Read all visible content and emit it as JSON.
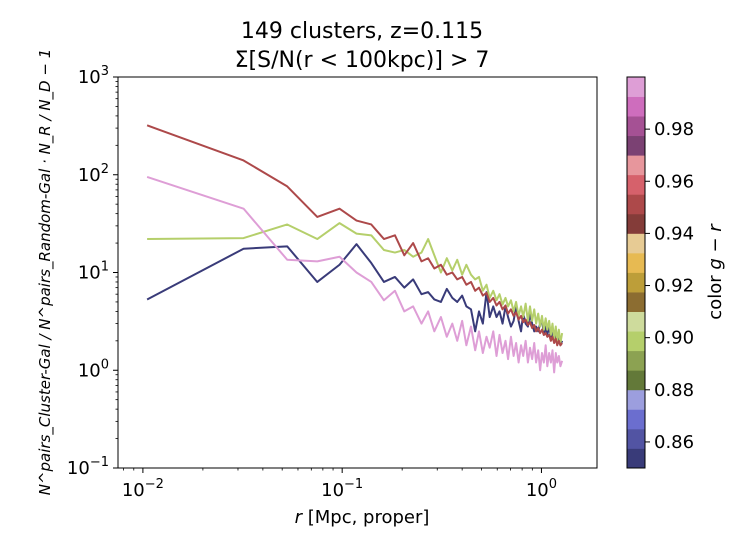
{
  "chart_data": {
    "type": "line",
    "title_line1": "149 clusters, z=0.115",
    "title_line2": "Σ[S/N(r < 100kpc)] > 7",
    "xlabel_var": "r",
    "xlabel_rest": " [Mpc, proper]",
    "ylabel": "N^pairs_Cluster-Gal / N^pairs_Random-Gal · N_R / N_D − 1",
    "xscale": "log",
    "yscale": "log",
    "xlim": [
      0.0075,
      1.9
    ],
    "ylim": [
      0.1,
      1000
    ],
    "xticks": [
      {
        "value": 0.01,
        "base": "10",
        "exp": "−2"
      },
      {
        "value": 0.1,
        "base": "10",
        "exp": "−1"
      },
      {
        "value": 1,
        "base": "10",
        "exp": "0"
      }
    ],
    "yticks": [
      {
        "value": 0.1,
        "base": "10",
        "exp": "−1"
      },
      {
        "value": 1,
        "base": "10",
        "exp": "0"
      },
      {
        "value": 10,
        "base": "10",
        "exp": "1"
      },
      {
        "value": 100,
        "base": "10",
        "exp": "2"
      },
      {
        "value": 1000,
        "base": "10",
        "exp": "3"
      }
    ],
    "series": [
      {
        "color": "#393b79",
        "x": [
          0.0105,
          0.032,
          0.053,
          0.075,
          0.097,
          0.118,
          0.14,
          0.162,
          0.184,
          0.205,
          0.227,
          0.25,
          0.27,
          0.29,
          0.313,
          0.335,
          0.357,
          0.378,
          0.4,
          0.42,
          0.443,
          0.465,
          0.486,
          0.508,
          0.53,
          0.55,
          0.573,
          0.595,
          0.616,
          0.638,
          0.66,
          0.68,
          0.703,
          0.725,
          0.746,
          0.768,
          0.79,
          0.81,
          0.833,
          0.855,
          0.876,
          0.898,
          0.92,
          0.94,
          0.963,
          0.985,
          1.006,
          1.028,
          1.05,
          1.07,
          1.093,
          1.115,
          1.136,
          1.158,
          1.18,
          1.2,
          1.223,
          1.245,
          1.27
        ],
        "y": [
          5.3,
          17.5,
          18.5,
          8.0,
          12.0,
          19.5,
          12.5,
          8.0,
          9.0,
          7.0,
          8.5,
          6.0,
          6.3,
          5.3,
          5.0,
          6.8,
          5.5,
          5.0,
          5.8,
          4.5,
          4.2,
          2.5,
          4.0,
          3.0,
          6.3,
          3.5,
          4.5,
          3.5,
          4.0,
          3.0,
          4.5,
          3.5,
          2.8,
          3.2,
          4.5,
          3.2,
          2.5,
          3.8,
          3.0,
          2.8,
          3.8,
          3.0,
          2.5,
          2.8,
          2.5,
          3.0,
          3.4,
          2.3,
          2.8,
          2.3,
          2.8,
          2.2,
          2.5,
          2.0,
          2.3,
          1.9,
          2.2,
          1.8,
          2.0
        ]
      },
      {
        "color": "#b5cf6b",
        "x": [
          0.0105,
          0.032,
          0.053,
          0.075,
          0.097,
          0.118,
          0.14,
          0.162,
          0.184,
          0.205,
          0.227,
          0.25,
          0.27,
          0.29,
          0.313,
          0.335,
          0.357,
          0.378,
          0.4,
          0.42,
          0.443,
          0.465,
          0.486,
          0.508,
          0.53,
          0.55,
          0.573,
          0.595,
          0.616,
          0.638,
          0.66,
          0.68,
          0.703,
          0.725,
          0.746,
          0.768,
          0.79,
          0.81,
          0.833,
          0.855,
          0.876,
          0.898,
          0.92,
          0.94,
          0.963,
          0.985,
          1.006,
          1.028,
          1.05,
          1.07,
          1.093,
          1.115,
          1.136,
          1.158,
          1.18,
          1.2,
          1.223,
          1.245,
          1.27
        ],
        "y": [
          22.0,
          22.5,
          31.0,
          22.0,
          32.0,
          25.0,
          24.0,
          17.0,
          16.0,
          17.0,
          14.5,
          16.0,
          22.0,
          15.0,
          10.0,
          14.0,
          10.5,
          13.5,
          9.5,
          12.0,
          9.5,
          8.5,
          9.0,
          6.5,
          7.5,
          5.5,
          6.5,
          5.2,
          6.0,
          4.7,
          5.5,
          4.5,
          5.2,
          4.0,
          5.0,
          3.6,
          4.5,
          3.5,
          4.8,
          3.2,
          4.5,
          3.2,
          4.2,
          3.0,
          3.8,
          2.8,
          3.6,
          2.6,
          3.4,
          2.6,
          3.2,
          2.3,
          3.0,
          2.1,
          2.8,
          2.0,
          2.6,
          1.9,
          2.4
        ]
      },
      {
        "color": "#ad494a",
        "x": [
          0.0105,
          0.032,
          0.053,
          0.075,
          0.097,
          0.118,
          0.14,
          0.162,
          0.184,
          0.205,
          0.227,
          0.25,
          0.27,
          0.29,
          0.313,
          0.335,
          0.357,
          0.378,
          0.4,
          0.42,
          0.443,
          0.465,
          0.486,
          0.508,
          0.53,
          0.55,
          0.573,
          0.595,
          0.616,
          0.638,
          0.66,
          0.68,
          0.703,
          0.725,
          0.746,
          0.768,
          0.79,
          0.81,
          0.833,
          0.855,
          0.876,
          0.898,
          0.92,
          0.94,
          0.963,
          0.985,
          1.006,
          1.028,
          1.05,
          1.07,
          1.093,
          1.115,
          1.136,
          1.158,
          1.18,
          1.2,
          1.223,
          1.245,
          1.27
        ],
        "y": [
          320,
          140,
          76,
          37,
          45,
          34,
          31,
          22,
          24,
          15,
          20,
          13,
          14,
          11,
          12,
          9.5,
          10,
          8.5,
          9.0,
          7.5,
          8.0,
          6.5,
          7.0,
          5.8,
          6.2,
          5.0,
          5.5,
          4.6,
          5.0,
          4.2,
          4.6,
          3.8,
          4.2,
          3.6,
          3.9,
          3.3,
          3.6,
          3.1,
          3.3,
          2.9,
          3.1,
          2.7,
          2.9,
          2.5,
          2.7,
          2.4,
          2.6,
          2.3,
          2.4,
          2.2,
          2.3,
          2.0,
          2.2,
          1.9,
          2.1,
          1.8,
          2.0,
          1.8,
          1.9
        ]
      },
      {
        "color": "#de9ed6",
        "x": [
          0.0105,
          0.032,
          0.053,
          0.075,
          0.097,
          0.118,
          0.14,
          0.162,
          0.184,
          0.205,
          0.227,
          0.25,
          0.27,
          0.29,
          0.313,
          0.335,
          0.357,
          0.378,
          0.4,
          0.42,
          0.443,
          0.465,
          0.486,
          0.508,
          0.53,
          0.55,
          0.573,
          0.595,
          0.616,
          0.638,
          0.66,
          0.68,
          0.703,
          0.725,
          0.746,
          0.768,
          0.79,
          0.81,
          0.833,
          0.855,
          0.876,
          0.898,
          0.92,
          0.94,
          0.963,
          0.985,
          1.006,
          1.028,
          1.05,
          1.07,
          1.093,
          1.115,
          1.136,
          1.158,
          1.18,
          1.2,
          1.223,
          1.245,
          1.27
        ],
        "y": [
          95,
          45,
          13.5,
          13.0,
          14.5,
          10.0,
          8.0,
          5.2,
          6.5,
          4.0,
          4.5,
          3.0,
          4.0,
          2.5,
          3.5,
          2.2,
          3.0,
          2.0,
          3.2,
          1.8,
          2.8,
          1.6,
          2.5,
          1.5,
          2.2,
          1.7,
          2.5,
          1.4,
          2.3,
          1.5,
          2.0,
          1.3,
          2.2,
          1.4,
          1.9,
          1.2,
          1.8,
          1.4,
          2.0,
          1.2,
          1.7,
          1.3,
          1.9,
          1.2,
          1.6,
          1.0,
          1.5,
          1.2,
          1.8,
          1.1,
          1.5,
          1.2,
          1.6,
          0.95,
          1.5,
          1.2,
          1.4,
          1.1,
          1.25
        ]
      }
    ],
    "colorbar": {
      "label_prefix": "color ",
      "label_var": "g − r",
      "min": 0.85,
      "max": 1.0,
      "ticks": [
        {
          "value": 0.86,
          "label": "0.86"
        },
        {
          "value": 0.88,
          "label": "0.88"
        },
        {
          "value": 0.9,
          "label": "0.90"
        },
        {
          "value": 0.92,
          "label": "0.92"
        },
        {
          "value": 0.94,
          "label": "0.94"
        },
        {
          "value": 0.96,
          "label": "0.96"
        },
        {
          "value": 0.98,
          "label": "0.98"
        }
      ],
      "colors": [
        "#393b79",
        "#5254a3",
        "#6b6ecf",
        "#9c9ede",
        "#637939",
        "#8ca252",
        "#b5cf6b",
        "#cedb9c",
        "#8c6d31",
        "#bd9e39",
        "#e7ba52",
        "#e7cb94",
        "#843c39",
        "#ad494a",
        "#d6616b",
        "#e7969c",
        "#7b4173",
        "#a55194",
        "#ce6dbd",
        "#de9ed6"
      ]
    }
  }
}
